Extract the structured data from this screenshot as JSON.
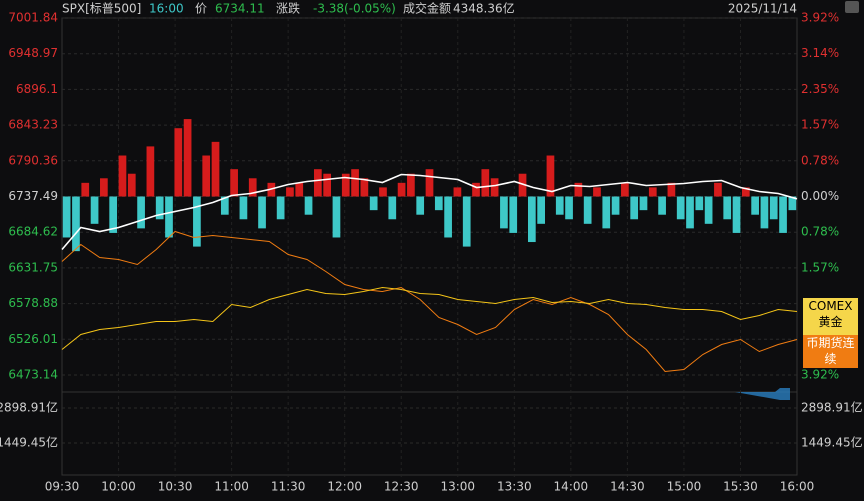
{
  "header": {
    "symbol": "SPX[标普500]",
    "time": "16:00",
    "price_label": "价",
    "price": "6734.11",
    "change_label": "涨跌",
    "change": "-3.38(-0.05%)",
    "turnover_label": "成交金额",
    "turnover": "4348.36亿",
    "date": "2025/11/14"
  },
  "chart_data": {
    "type": "line",
    "xticks": [
      "09:30",
      "10:00",
      "10:30",
      "11:00",
      "11:30",
      "12:00",
      "12:30",
      "13:00",
      "13:30",
      "14:00",
      "14:30",
      "15:00",
      "15:30",
      "16:00"
    ],
    "ylim": [
      6473.14,
      7001.84
    ],
    "yticks": [
      7001.84,
      6948.97,
      6896.1,
      6843.23,
      6790.36,
      6737.49,
      6684.62,
      6631.75,
      6578.88,
      6526.01,
      6473.14
    ],
    "y2lim": [
      -3.92,
      3.92
    ],
    "y2ticks": [
      {
        "value": 3.92,
        "label": "3.92%"
      },
      {
        "value": 3.14,
        "label": "3.14%"
      },
      {
        "value": 2.35,
        "label": "2.35%"
      },
      {
        "value": 1.57,
        "label": "1.57%"
      },
      {
        "value": 0.78,
        "label": "0.78%"
      },
      {
        "value": 0,
        "label": "0.00%"
      },
      {
        "value": -0.78,
        "label": "0.78%"
      },
      {
        "value": -1.57,
        "label": "1.57%"
      },
      {
        "value": -3.92,
        "label": "3.92%"
      }
    ],
    "vlim": [
      0,
      4348.36
    ],
    "vticks": [
      {
        "value": 2898.91,
        "label": "2898.91亿"
      },
      {
        "value": 1449.45,
        "label": "1449.45亿"
      }
    ],
    "grid": true,
    "series": [
      {
        "color": "#ffffff",
        "values": [
          6659.0,
          6691.6,
          6685.7,
          6691.6,
          6700.5,
          6709.4,
          6715.3,
          6721.2,
          6728.6,
          6739.0,
          6741.9,
          6747.9,
          6755.3,
          6759.7,
          6762.7,
          6765.6,
          6762.7,
          6758.2,
          6770.1,
          6768.6,
          6765.6,
          6762.7,
          6750.8,
          6753.8,
          6759.7,
          6750.8,
          6744.9,
          6753.8,
          6752.3,
          6755.3,
          6758.2,
          6753.8,
          6755.3,
          6756.8,
          6759.7,
          6761.2,
          6750.8,
          6744.9,
          6741.9,
          6734.11
        ]
      },
      {
        "name": "COMEX 黄金",
        "color": "#f5c518",
        "values": [
          6510.9,
          6533.1,
          6540.5,
          6543.5,
          6547.9,
          6552.4,
          6552.4,
          6555.3,
          6552.4,
          6577.6,
          6573.1,
          6585.0,
          6592.4,
          6599.8,
          6593.8,
          6592.4,
          6596.8,
          6602.7,
          6599.8,
          6593.8,
          6592.4,
          6585.0,
          6582.0,
          6579.0,
          6585.0,
          6587.9,
          6580.5,
          6582.0,
          6579.0,
          6585.0,
          6579.0,
          6577.6,
          6573.1,
          6570.1,
          6570.1,
          6567.2,
          6555.3,
          6561.3,
          6570.1,
          6567.2
        ]
      },
      {
        "name": "币期货连续",
        "color": "#f07c12",
        "values": [
          6641.2,
          6666.4,
          6647.2,
          6644.2,
          6636.8,
          6659.0,
          6685.7,
          6676.8,
          6679.7,
          6676.8,
          6673.8,
          6670.9,
          6651.6,
          6644.2,
          6626.4,
          6607.2,
          6599.8,
          6596.8,
          6602.7,
          6585.0,
          6558.3,
          6547.9,
          6533.1,
          6543.5,
          6570.1,
          6585.0,
          6577.6,
          6587.9,
          6577.6,
          6562.7,
          6533.1,
          6510.9,
          6478.3,
          6481.3,
          6503.5,
          6518.3,
          6525.7,
          6507.9,
          6518.3,
          6525.7
        ]
      },
      {
        "axis": "y2",
        "up_color": "#d61c1c",
        "down_color": "#3ec8c8",
        "values": [
          -0.9,
          -1.2,
          0.3,
          -0.6,
          0.4,
          -0.8,
          0.9,
          0.5,
          -0.7,
          1.1,
          -0.5,
          -0.9,
          1.5,
          1.7,
          -1.1,
          0.9,
          1.2,
          -0.4,
          0.6,
          -0.5,
          0.4,
          -0.7,
          0.3,
          -0.5,
          0.2,
          0.3,
          -0.4,
          0.6,
          0.5,
          -0.9,
          0.5,
          0.6,
          0.4,
          -0.3,
          0.2,
          -0.5,
          0.3,
          0.5,
          -0.4,
          0.6,
          -0.3,
          -0.9,
          0.2,
          -1.1,
          0.3,
          0.6,
          0.4,
          -0.7,
          -0.8,
          0.5,
          -1.0,
          -0.6,
          0.9,
          -0.4,
          -0.5,
          0.3,
          -0.6,
          0.2,
          -0.7,
          -0.4,
          0.3,
          -0.5,
          -0.3,
          0.2,
          -0.4,
          0.3,
          -0.5,
          -0.7,
          -0.3,
          -0.6,
          0.3,
          -0.5,
          -0.8,
          0.2,
          -0.4,
          -0.7,
          -0.5,
          -0.8,
          -0.3
        ]
      }
    ]
  }
}
